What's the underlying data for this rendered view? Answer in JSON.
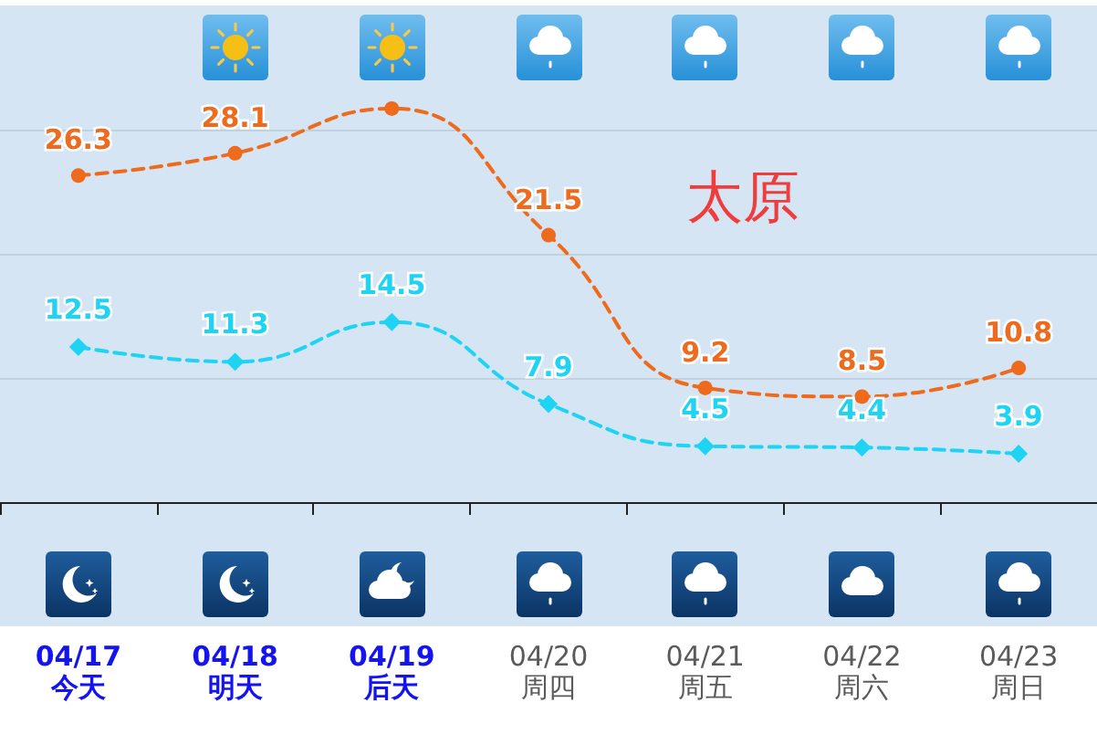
{
  "chart_data": {
    "type": "line",
    "title": "太原",
    "categories": [
      "04/17\n今天",
      "04/18\n明天",
      "04/19\n后天",
      "04/20\n周四",
      "04/21\n周五",
      "04/22\n周六",
      "04/23\n周日"
    ],
    "series": [
      {
        "color": "#ee6a1c",
        "marker": "circle",
        "values": [
          26.3,
          28.1,
          31.7,
          21.5,
          9.2,
          8.5,
          10.8
        ],
        "value_labels": [
          "26.3",
          "28.1",
          null,
          "21.5",
          "9.2",
          "8.5",
          "10.8"
        ]
      },
      {
        "color": "#1fd3f3",
        "marker": "diamond",
        "values": [
          12.5,
          11.3,
          14.5,
          7.9,
          4.5,
          4.4,
          3.9
        ],
        "value_labels": [
          "12.5",
          "11.3",
          "14.5",
          "7.9",
          "4.5",
          "4.4",
          "3.9"
        ]
      }
    ],
    "ylim": [
      -10,
      40
    ],
    "yticks": [
      {
        "value": 0,
        "label": null
      },
      {
        "value": 10,
        "label": null
      },
      {
        "value": 20,
        "label": null
      },
      {
        "value": 30,
        "label": null
      }
    ],
    "grid": "y",
    "tick_labels": "x",
    "line_style": "dashed"
  }
}
